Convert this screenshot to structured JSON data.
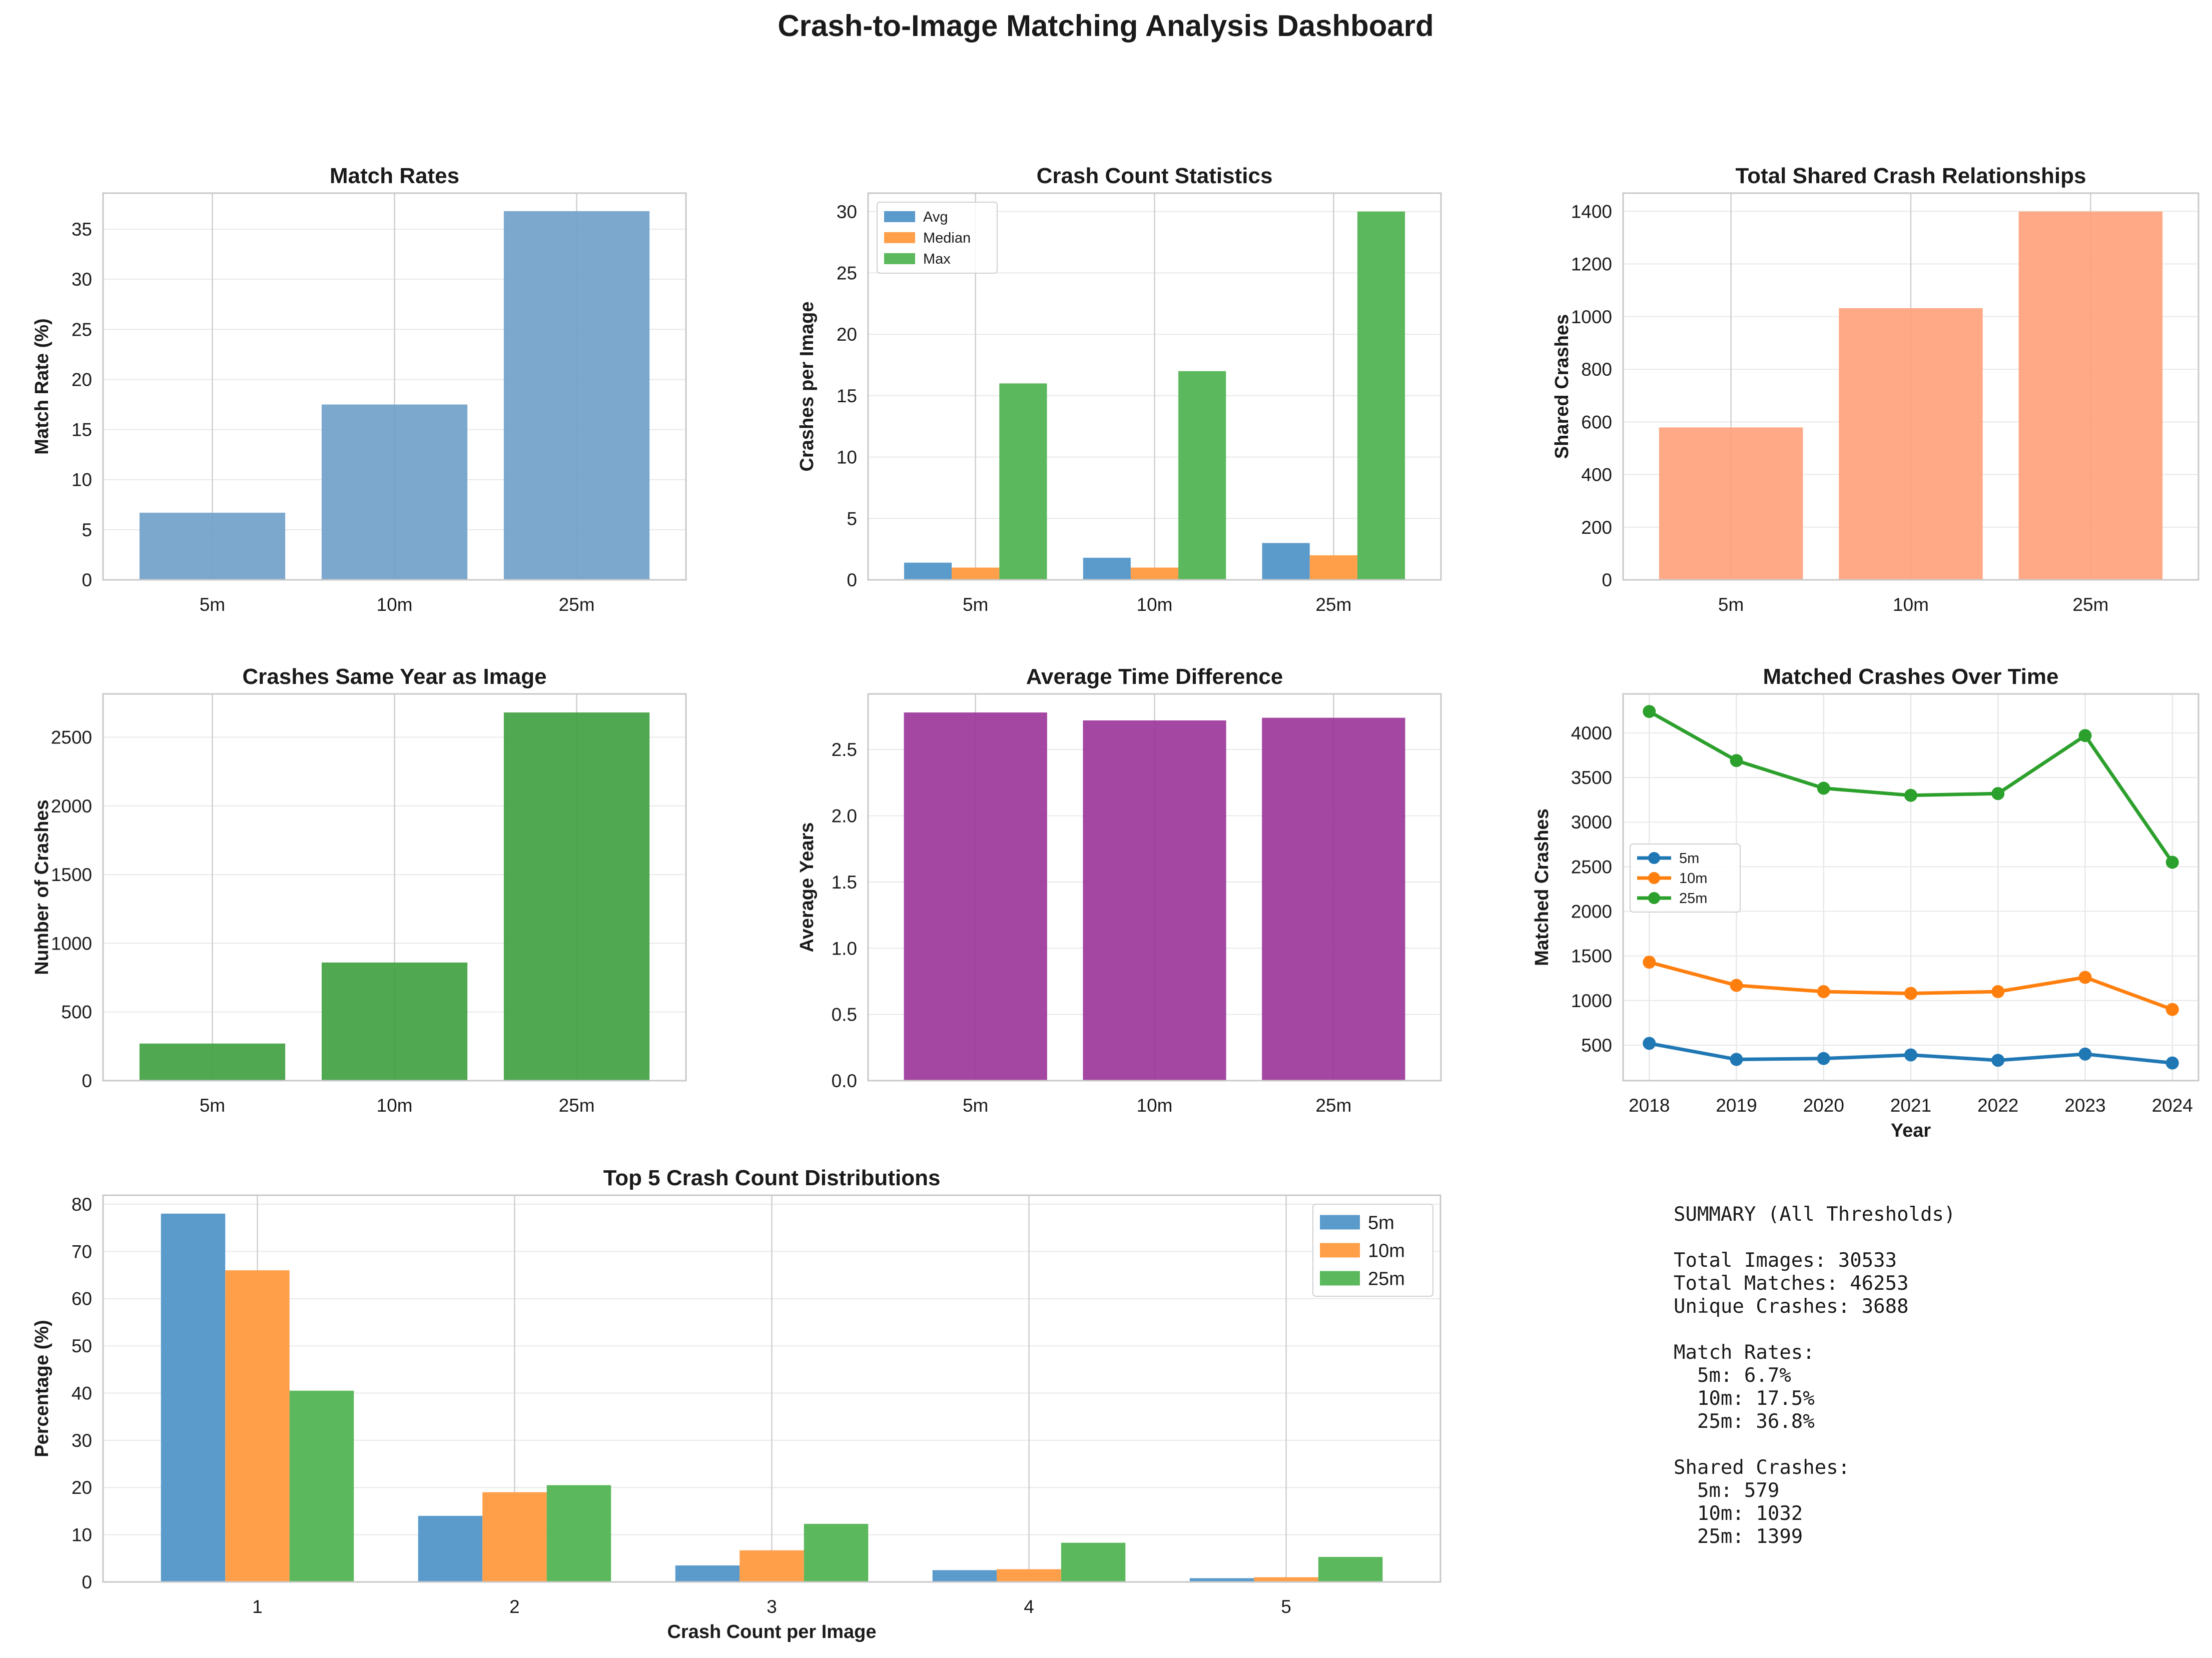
{
  "dashboard_title": "Crash-to-Image Matching Analysis Dashboard",
  "chart_data": [
    {
      "type": "bar",
      "title": "Match Rates",
      "xlabel": "",
      "ylabel": "Match Rate (%)",
      "categories": [
        "5m",
        "10m",
        "25m"
      ],
      "values": [
        6.7,
        17.5,
        36.8
      ],
      "ylim": [
        0,
        38.6
      ],
      "yticks": [
        0,
        5,
        10,
        15,
        20,
        25,
        30,
        35
      ],
      "color": "#6f9ec9",
      "grid": true
    },
    {
      "type": "bar",
      "title": "Crash Count Statistics",
      "xlabel": "",
      "ylabel": "Crashes per Image",
      "categories": [
        "5m",
        "10m",
        "25m"
      ],
      "series": [
        {
          "name": "Avg",
          "values": [
            1.4,
            1.8,
            3.0
          ],
          "color": "#5b9bcc"
        },
        {
          "name": "Median",
          "values": [
            1,
            1,
            2
          ],
          "color": "#ff9f4a"
        },
        {
          "name": "Max",
          "values": [
            16,
            17,
            30
          ],
          "color": "#5cb85c"
        }
      ],
      "ylim": [
        0,
        31.5
      ],
      "yticks": [
        0,
        5,
        10,
        15,
        20,
        25,
        30
      ],
      "legend": "top-left",
      "grid": true
    },
    {
      "type": "bar",
      "title": "Total Shared Crash Relationships",
      "xlabel": "",
      "ylabel": "Shared Crashes",
      "categories": [
        "5m",
        "10m",
        "25m"
      ],
      "values": [
        579,
        1032,
        1399
      ],
      "ylim": [
        0,
        1469
      ],
      "yticks": [
        0,
        200,
        400,
        600,
        800,
        1000,
        1200,
        1400
      ],
      "color": "#ffa07a",
      "grid": true
    },
    {
      "type": "bar",
      "title": "Crashes Same Year as Image",
      "xlabel": "",
      "ylabel": "Number of Crashes",
      "categories": [
        "5m",
        "10m",
        "25m"
      ],
      "values": [
        270,
        860,
        2680
      ],
      "ylim": [
        0,
        2815
      ],
      "yticks": [
        0,
        500,
        1000,
        1500,
        2000,
        2500
      ],
      "color": "#3d9e3d",
      "grid": true
    },
    {
      "type": "bar",
      "title": "Average Time Difference",
      "xlabel": "",
      "ylabel": "Average Years",
      "categories": [
        "5m",
        "10m",
        "25m"
      ],
      "values": [
        2.78,
        2.72,
        2.74
      ],
      "ylim": [
        0,
        2.92
      ],
      "yticks": [
        "0.0",
        "0.5",
        "1.0",
        "1.5",
        "2.0",
        "2.5"
      ],
      "color": "#9a3399",
      "grid": true
    },
    {
      "type": "line",
      "title": "Matched Crashes Over Time",
      "xlabel": "Year",
      "ylabel": "Matched Crashes",
      "x": [
        2018,
        2019,
        2020,
        2021,
        2022,
        2023,
        2024
      ],
      "series": [
        {
          "name": "5m",
          "values": [
            520,
            340,
            350,
            390,
            330,
            400,
            300
          ],
          "color": "#1f77b4"
        },
        {
          "name": "10m",
          "values": [
            1430,
            1170,
            1100,
            1080,
            1100,
            1260,
            900
          ],
          "color": "#ff7f0e"
        },
        {
          "name": "25m",
          "values": [
            4240,
            3690,
            3380,
            3300,
            3320,
            3970,
            2550
          ],
          "color": "#2ca02c"
        }
      ],
      "xlim": [
        2017.7,
        2024.3
      ],
      "ylim": [
        102,
        4437
      ],
      "yticks": [
        500,
        1000,
        1500,
        2000,
        2500,
        3000,
        3500,
        4000
      ],
      "legend": "center-left",
      "grid": true
    },
    {
      "type": "bar",
      "title": "Top 5 Crash Count Distributions",
      "xlabel": "Crash Count per Image",
      "ylabel": "Percentage (%)",
      "categories": [
        "1",
        "2",
        "3",
        "4",
        "5"
      ],
      "series": [
        {
          "name": "5m",
          "values": [
            78,
            14,
            3.5,
            2.5,
            0.8
          ],
          "color": "#5b9bcc"
        },
        {
          "name": "10m",
          "values": [
            66,
            19,
            6.7,
            2.7,
            1.0
          ],
          "color": "#ff9f4a"
        },
        {
          "name": "25m",
          "values": [
            40.5,
            20.5,
            12.3,
            8.3,
            5.3
          ],
          "color": "#5cb85c"
        }
      ],
      "ylim": [
        0,
        81.9
      ],
      "yticks": [
        0,
        10,
        20,
        30,
        40,
        50,
        60,
        70,
        80
      ],
      "legend": "top-right",
      "grid": true
    }
  ],
  "summary": {
    "lines": [
      "SUMMARY (All Thresholds)",
      "",
      "Total Images: 30533",
      "Total Matches: 46253",
      "Unique Crashes: 3688",
      "",
      "Match Rates:",
      "  5m: 6.7%",
      "  10m: 17.5%",
      "  25m: 36.8%",
      "",
      "Shared Crashes:",
      "  5m: 579",
      "  10m: 1032",
      "  25m: 1399"
    ]
  }
}
